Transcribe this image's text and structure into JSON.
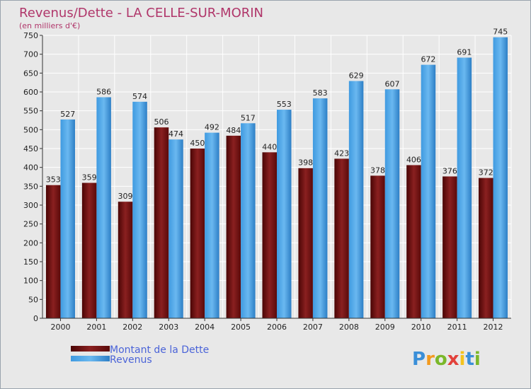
{
  "chart_data": {
    "type": "bar",
    "title": "Revenus/Dette - LA CELLE-SUR-MORIN",
    "subtitle": "(en milliers d'€)",
    "xlabel": "",
    "ylabel": "",
    "categories": [
      "2000",
      "2001",
      "2002",
      "2003",
      "2004",
      "2005",
      "2006",
      "2007",
      "2008",
      "2009",
      "2010",
      "2011",
      "2012"
    ],
    "series": [
      {
        "name": "Montant de la Dette",
        "color": "#7a1a1a",
        "values": [
          353,
          359,
          309,
          506,
          450,
          484,
          440,
          398,
          423,
          378,
          406,
          376,
          372
        ]
      },
      {
        "name": "Revenus",
        "color": "#4da3e4",
        "values": [
          527,
          586,
          574,
          474,
          492,
          517,
          553,
          583,
          629,
          607,
          672,
          691,
          745
        ]
      }
    ],
    "ylim": [
      0,
      750
    ],
    "yticks": [
      0,
      50,
      100,
      150,
      200,
      250,
      300,
      350,
      400,
      450,
      500,
      550,
      600,
      650,
      700,
      750
    ],
    "grid": true,
    "legend": "bottom-left"
  },
  "logo": {
    "text": "Proxiti",
    "letters": [
      "P",
      "r",
      "o",
      "x",
      "i",
      "t",
      "i"
    ],
    "colors": [
      "#3a8fd8",
      "#f39a1e",
      "#7bb82a",
      "#e2413b",
      "#f3c21e",
      "#3a8fd8",
      "#7bb82a"
    ]
  }
}
